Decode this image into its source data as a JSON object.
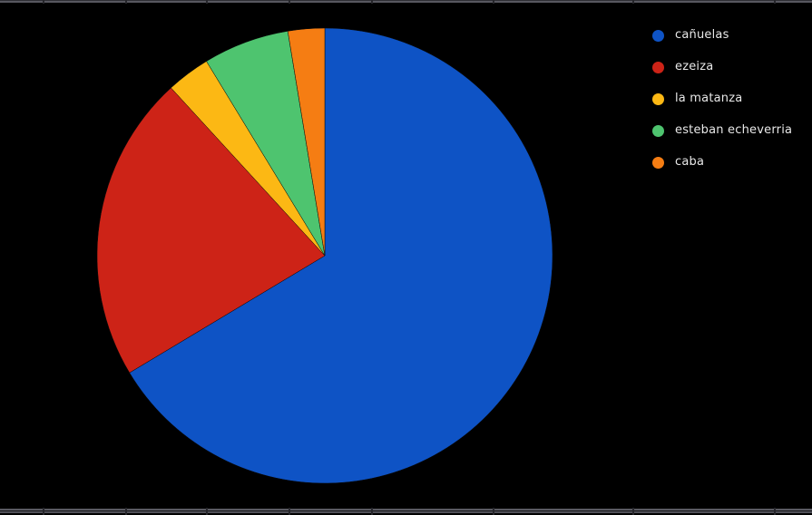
{
  "window": {
    "background_color": "#000000",
    "edge_strip_color": "#57575f"
  },
  "chart_data": {
    "type": "pie",
    "title": "",
    "labels": [
      "cañuelas",
      "ezeiza",
      "la matanza",
      "esteban echeverria",
      "caba"
    ],
    "values": [
      66.4,
      21.8,
      3.1,
      6.1,
      2.6
    ],
    "unit": "percent (estimated from slice angles)",
    "colors": [
      "#0e53c5",
      "#cd2317",
      "#fcb814",
      "#4ec46f",
      "#f57d13"
    ],
    "start_angle": "12 o'clock",
    "direction": "clockwise",
    "background_color": "#000000",
    "legend": {
      "position": "top-right",
      "marker_shape": "circle",
      "text_color": "#e8e8e8",
      "items": [
        "cañuelas",
        "ezeiza",
        "la matanza",
        "esteban echeverria",
        "caba"
      ]
    }
  }
}
